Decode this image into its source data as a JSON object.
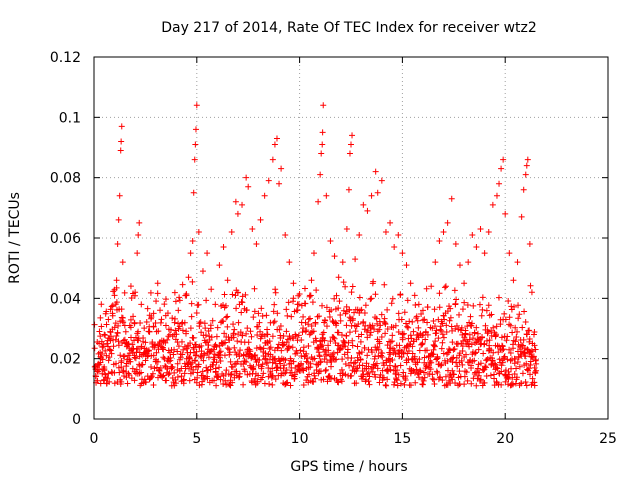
{
  "chart_data": {
    "type": "scatter",
    "title": "Day 217 of 2014, Rate Of TEC Index for receiver wtz2",
    "xlabel": "GPS time / hours",
    "ylabel": "ROTI / TECUs",
    "xlim": [
      0,
      25
    ],
    "ylim": [
      0,
      0.12
    ],
    "x_ticks": [
      0,
      5,
      10,
      15,
      20,
      25
    ],
    "y_ticks": [
      0,
      0.02,
      0.04,
      0.06,
      0.08,
      0.1,
      0.12
    ],
    "x_tick_labels": [
      "0",
      "5",
      "10",
      "15",
      "20",
      "25"
    ],
    "y_tick_labels": [
      "0",
      "0.02",
      "0.04",
      "0.06",
      "0.08",
      "0.1",
      "0.12"
    ],
    "grid": true,
    "marker": "+",
    "color": "#ff0000",
    "series": [
      {
        "name": "ROTI",
        "points": [
          [
            0.1,
            0.012
          ],
          [
            0.2,
            0.018
          ],
          [
            0.3,
            0.022
          ],
          [
            0.4,
            0.015
          ],
          [
            0.5,
            0.028
          ],
          [
            0.6,
            0.021
          ],
          [
            0.7,
            0.033
          ],
          [
            0.8,
            0.026
          ],
          [
            0.9,
            0.035
          ],
          [
            1.0,
            0.041
          ],
          [
            1.1,
            0.046
          ],
          [
            1.15,
            0.058
          ],
          [
            1.2,
            0.066
          ],
          [
            1.25,
            0.074
          ],
          [
            1.3,
            0.089
          ],
          [
            1.32,
            0.092
          ],
          [
            1.35,
            0.097
          ],
          [
            1.4,
            0.052
          ],
          [
            1.5,
            0.031
          ],
          [
            1.6,
            0.024
          ],
          [
            1.7,
            0.019
          ],
          [
            1.8,
            0.027
          ],
          [
            1.9,
            0.034
          ],
          [
            2.0,
            0.042
          ],
          [
            2.1,
            0.055
          ],
          [
            2.15,
            0.061
          ],
          [
            2.2,
            0.065
          ],
          [
            2.3,
            0.038
          ],
          [
            2.5,
            0.022
          ],
          [
            2.7,
            0.029
          ],
          [
            2.9,
            0.035
          ],
          [
            3.1,
            0.045
          ],
          [
            3.3,
            0.026
          ],
          [
            3.5,
            0.031
          ],
          [
            3.7,
            0.022
          ],
          [
            3.9,
            0.028
          ],
          [
            4.1,
            0.036
          ],
          [
            4.3,
            0.032
          ],
          [
            4.5,
            0.041
          ],
          [
            4.6,
            0.047
          ],
          [
            4.7,
            0.055
          ],
          [
            4.8,
            0.059
          ],
          [
            4.85,
            0.075
          ],
          [
            4.9,
            0.086
          ],
          [
            4.93,
            0.091
          ],
          [
            4.96,
            0.096
          ],
          [
            5.0,
            0.104
          ],
          [
            5.1,
            0.062
          ],
          [
            5.3,
            0.049
          ],
          [
            5.5,
            0.055
          ],
          [
            5.7,
            0.043
          ],
          [
            5.9,
            0.038
          ],
          [
            6.1,
            0.051
          ],
          [
            6.3,
            0.057
          ],
          [
            6.5,
            0.046
          ],
          [
            6.7,
            0.062
          ],
          [
            6.9,
            0.072
          ],
          [
            7.0,
            0.068
          ],
          [
            7.2,
            0.071
          ],
          [
            7.4,
            0.08
          ],
          [
            7.5,
            0.077
          ],
          [
            7.7,
            0.063
          ],
          [
            7.9,
            0.058
          ],
          [
            8.1,
            0.066
          ],
          [
            8.3,
            0.074
          ],
          [
            8.5,
            0.079
          ],
          [
            8.7,
            0.086
          ],
          [
            8.8,
            0.091
          ],
          [
            8.9,
            0.093
          ],
          [
            9.0,
            0.078
          ],
          [
            9.1,
            0.083
          ],
          [
            9.3,
            0.061
          ],
          [
            9.5,
            0.052
          ],
          [
            9.7,
            0.045
          ],
          [
            9.9,
            0.038
          ],
          [
            10.1,
            0.032
          ],
          [
            10.3,
            0.029
          ],
          [
            10.5,
            0.041
          ],
          [
            10.7,
            0.055
          ],
          [
            10.9,
            0.072
          ],
          [
            11.0,
            0.081
          ],
          [
            11.05,
            0.088
          ],
          [
            11.1,
            0.091
          ],
          [
            11.12,
            0.095
          ],
          [
            11.15,
            0.104
          ],
          [
            11.3,
            0.074
          ],
          [
            11.5,
            0.059
          ],
          [
            11.7,
            0.054
          ],
          [
            11.9,
            0.047
          ],
          [
            12.1,
            0.052
          ],
          [
            12.3,
            0.063
          ],
          [
            12.4,
            0.076
          ],
          [
            12.45,
            0.088
          ],
          [
            12.5,
            0.091
          ],
          [
            12.55,
            0.094
          ],
          [
            12.7,
            0.053
          ],
          [
            12.9,
            0.061
          ],
          [
            13.1,
            0.071
          ],
          [
            13.3,
            0.069
          ],
          [
            13.5,
            0.074
          ],
          [
            13.7,
            0.082
          ],
          [
            13.8,
            0.075
          ],
          [
            14.0,
            0.079
          ],
          [
            14.2,
            0.062
          ],
          [
            14.4,
            0.065
          ],
          [
            14.6,
            0.057
          ],
          [
            14.8,
            0.061
          ],
          [
            15.0,
            0.055
          ],
          [
            15.2,
            0.051
          ],
          [
            15.4,
            0.045
          ],
          [
            15.6,
            0.041
          ],
          [
            15.8,
            0.038
          ],
          [
            16.0,
            0.036
          ],
          [
            16.2,
            0.032
          ],
          [
            16.4,
            0.044
          ],
          [
            16.6,
            0.052
          ],
          [
            16.8,
            0.059
          ],
          [
            17.0,
            0.062
          ],
          [
            17.2,
            0.065
          ],
          [
            17.4,
            0.073
          ],
          [
            17.6,
            0.058
          ],
          [
            17.8,
            0.051
          ],
          [
            18.0,
            0.045
          ],
          [
            18.2,
            0.052
          ],
          [
            18.4,
            0.061
          ],
          [
            18.6,
            0.057
          ],
          [
            18.8,
            0.063
          ],
          [
            19.0,
            0.055
          ],
          [
            19.2,
            0.062
          ],
          [
            19.4,
            0.071
          ],
          [
            19.6,
            0.074
          ],
          [
            19.7,
            0.078
          ],
          [
            19.8,
            0.083
          ],
          [
            19.9,
            0.086
          ],
          [
            20.0,
            0.068
          ],
          [
            20.2,
            0.055
          ],
          [
            20.4,
            0.046
          ],
          [
            20.6,
            0.052
          ],
          [
            20.8,
            0.067
          ],
          [
            20.9,
            0.076
          ],
          [
            21.0,
            0.081
          ],
          [
            21.05,
            0.084
          ],
          [
            21.1,
            0.086
          ],
          [
            21.2,
            0.058
          ],
          [
            21.3,
            0.042
          ],
          [
            21.4,
            0.028
          ],
          [
            21.5,
            0.016
          ]
        ]
      }
    ],
    "envelope": {
      "note": "dense low-level ROTI background sampled every 0.05 h",
      "x_start": 0.05,
      "x_step": 0.05,
      "count": 430,
      "base": 0.011,
      "spread": 0.024
    }
  }
}
